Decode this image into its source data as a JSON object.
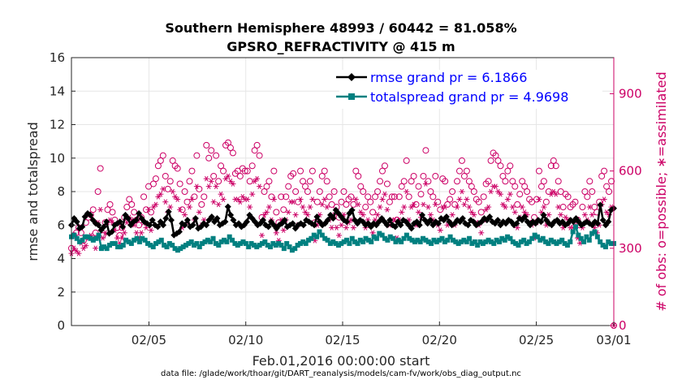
{
  "chart_data": {
    "type": "line",
    "title_line1": "Southern Hemisphere 48993 / 60442 = 81.058%",
    "title_line2": "GPSRO_REFRACTIVITY @ 415 m",
    "ylabel_left": "rmse and totalspread",
    "ylabel_right": "# of obs: o=possible; ∗=assimilated",
    "xlabel": "Feb.01,2016 00:00:00 start",
    "footnote": "data file: /glade/work/thoar/git/DART_reanalysis/models/cam-fv/work/obs_diag_output.nc",
    "ylim_left": [
      0,
      16
    ],
    "ylim_right": [
      0,
      1040
    ],
    "xlim": [
      1,
      29
    ],
    "yticks_left": [
      "0",
      "2",
      "4",
      "6",
      "8",
      "10",
      "12",
      "14",
      "16"
    ],
    "yticks_right": [
      "0",
      "300",
      "600",
      "900"
    ],
    "xticks": [
      {
        "pos": 5,
        "label": "02/05"
      },
      {
        "pos": 10,
        "label": "02/10"
      },
      {
        "pos": 15,
        "label": "02/15"
      },
      {
        "pos": 20,
        "label": "02/20"
      },
      {
        "pos": 25,
        "label": "02/25"
      },
      {
        "pos": 29,
        "label": "03/01"
      }
    ],
    "grid": true,
    "legend_placement": "top-right",
    "colors": {
      "rmse": "#000000",
      "spread": "#008080",
      "obs": "#cc0066",
      "legend_text": "#0000ff"
    },
    "series": [
      {
        "name": "rmse grand pr = 6.1866",
        "axis": "left",
        "values": [
          6.0,
          6.4,
          6.2,
          5.8,
          5.9,
          6.5,
          6.7,
          6.6,
          6.3,
          6.1,
          6.0,
          5.7,
          5.9,
          6.2,
          5.5,
          5.6,
          6.0,
          6.1,
          6.2,
          5.9,
          6.6,
          6.4,
          6.0,
          6.2,
          6.3,
          6.7,
          6.4,
          6.2,
          6.1,
          6.0,
          6.3,
          6.0,
          5.9,
          6.2,
          6.0,
          6.4,
          6.8,
          6.3,
          5.4,
          5.5,
          5.6,
          6.1,
          6.0,
          6.3,
          5.9,
          6.0,
          6.4,
          5.8,
          5.9,
          6.1,
          6.0,
          6.3,
          6.5,
          6.2,
          6.4,
          6.0,
          6.1,
          6.2,
          7.1,
          6.6,
          6.3,
          6.0,
          6.1,
          5.9,
          6.0,
          6.2,
          6.6,
          6.4,
          6.2,
          6.0,
          6.1,
          6.3,
          6.0,
          5.9,
          6.2,
          6.0,
          5.8,
          6.0,
          6.1,
          6.3,
          5.9,
          6.0,
          6.1,
          5.8,
          6.0,
          6.1,
          6.0,
          6.3,
          6.2,
          6.1,
          6.0,
          6.5,
          6.2,
          6.0,
          6.1,
          6.3,
          6.6,
          6.4,
          6.9,
          6.7,
          6.5,
          6.3,
          6.2,
          6.7,
          6.9,
          6.3,
          6.1,
          6.3,
          6.2,
          6.0,
          6.1,
          5.9,
          6.1,
          6.0,
          6.2,
          6.4,
          6.2,
          6.0,
          6.3,
          6.0,
          5.9,
          6.2,
          6.0,
          6.3,
          6.2,
          6.0,
          5.8,
          6.1,
          6.2,
          6.0,
          6.6,
          6.3,
          6.1,
          6.3,
          6.0,
          6.2,
          6.1,
          6.4,
          6.3,
          6.5,
          6.2,
          6.0,
          6.1,
          6.3,
          6.2,
          6.4,
          6.1,
          6.0,
          6.3,
          6.2,
          6.0,
          6.1,
          6.2,
          6.4,
          6.3,
          6.5,
          6.2,
          6.1,
          6.3,
          6.0,
          6.2,
          6.1,
          6.3,
          6.2,
          6.0,
          6.1,
          6.4,
          6.3,
          6.5,
          6.2,
          6.0,
          6.2,
          6.1,
          6.3,
          6.2,
          6.6,
          6.3,
          6.1,
          6.0,
          6.2,
          6.3,
          6.1,
          6.2,
          6.0,
          6.1,
          6.3,
          6.2,
          6.4,
          6.2,
          6.0,
          6.1,
          6.2,
          6.1,
          6.0,
          6.2,
          6.1,
          7.2,
          6.3,
          6.0,
          6.2,
          6.9,
          7.0
        ]
      },
      {
        "name": "totalspread grand pr = 4.9698",
        "axis": "left",
        "values": [
          5.3,
          5.4,
          5.2,
          5.0,
          5.1,
          5.3,
          5.3,
          5.2,
          5.1,
          5.2,
          5.4,
          4.6,
          4.7,
          4.6,
          4.8,
          4.9,
          4.9,
          4.7,
          4.7,
          4.8,
          5.1,
          5.0,
          4.9,
          5.1,
          5.2,
          5.0,
          5.2,
          5.1,
          4.9,
          4.8,
          4.7,
          4.9,
          5.0,
          5.1,
          4.8,
          4.7,
          4.9,
          4.8,
          4.6,
          4.5,
          4.6,
          4.7,
          4.8,
          4.9,
          5.0,
          4.8,
          4.9,
          4.7,
          4.9,
          5.0,
          5.1,
          5.0,
          5.2,
          4.9,
          4.8,
          5.0,
          5.1,
          5.0,
          5.3,
          5.1,
          4.9,
          4.8,
          4.9,
          5.0,
          4.9,
          4.7,
          4.9,
          4.8,
          4.7,
          4.8,
          4.9,
          5.0,
          4.8,
          4.7,
          4.9,
          4.8,
          4.9,
          4.8,
          4.6,
          4.9,
          4.7,
          4.5,
          4.6,
          4.8,
          4.9,
          5.0,
          4.9,
          5.1,
          5.2,
          5.4,
          5.3,
          5.6,
          5.4,
          5.2,
          5.1,
          4.9,
          5.0,
          4.9,
          4.8,
          4.9,
          5.0,
          5.1,
          4.9,
          5.2,
          5.0,
          4.9,
          5.1,
          5.0,
          5.2,
          5.1,
          5.0,
          5.3,
          5.2,
          5.5,
          5.4,
          5.2,
          5.1,
          5.3,
          5.2,
          5.0,
          5.1,
          5.0,
          5.2,
          5.4,
          5.2,
          5.1,
          5.0,
          5.1,
          5.0,
          5.2,
          5.1,
          5.0,
          4.9,
          5.1,
          5.0,
          5.1,
          5.2,
          5.0,
          5.1,
          5.3,
          5.1,
          5.0,
          4.9,
          5.0,
          5.1,
          5.0,
          5.2,
          4.9,
          5.0,
          4.8,
          5.0,
          4.9,
          5.0,
          5.1,
          5.0,
          4.9,
          5.1,
          5.0,
          5.2,
          5.1,
          5.3,
          5.2,
          5.0,
          4.9,
          4.8,
          5.0,
          5.1,
          4.9,
          5.0,
          5.2,
          5.4,
          5.3,
          5.1,
          5.2,
          5.0,
          4.9,
          5.1,
          5.0,
          4.9,
          5.0,
          5.1,
          4.9,
          4.8,
          5.0,
          5.6,
          5.9,
          5.4,
          5.2,
          5.0,
          5.3,
          5.1,
          5.5,
          5.6,
          5.3,
          5.0,
          4.8,
          4.7,
          5.0,
          4.9,
          4.9
        ]
      },
      {
        "name": "# of obs possible",
        "axis": "right",
        "values": [
          300,
          350,
          360,
          380,
          360,
          330,
          400,
          420,
          430,
          450,
          360,
          520,
          610,
          350,
          400,
          450,
          470,
          440,
          410,
          380,
          350,
          380,
          420,
          460,
          490,
          470,
          440,
          410,
          390,
          420,
          500,
          450,
          540,
          440,
          550,
          570,
          620,
          640,
          660,
          580,
          530,
          560,
          640,
          620,
          610,
          550,
          450,
          520,
          480,
          560,
          600,
          500,
          660,
          530,
          470,
          500,
          700,
          650,
          680,
          580,
          660,
          560,
          620,
          600,
          700,
          710,
          690,
          670,
          590,
          600,
          580,
          610,
          600,
          600,
          560,
          620,
          680,
          700,
          660,
          420,
          520,
          540,
          560,
          500,
          600,
          440,
          400,
          500,
          450,
          500,
          540,
          580,
          590,
          520,
          480,
          600,
          560,
          540,
          520,
          560,
          600,
          400,
          480,
          520,
          580,
          600,
          560,
          500,
          470,
          520,
          460,
          420,
          480,
          520,
          470,
          490,
          500,
          470,
          600,
          580,
          540,
          520,
          460,
          500,
          480,
          440,
          500,
          520,
          560,
          600,
          620,
          550,
          480,
          500,
          500,
          410,
          500,
          540,
          560,
          640,
          500,
          560,
          580,
          470,
          540,
          510,
          580,
          680,
          560,
          520,
          500,
          580,
          480,
          450,
          570,
          560,
          470,
          490,
          520,
          470,
          560,
          600,
          640,
          580,
          600,
          560,
          540,
          520,
          490,
          480,
          440,
          500,
          550,
          560,
          640,
          670,
          660,
          640,
          620,
          580,
          560,
          600,
          620,
          560,
          540,
          470,
          510,
          560,
          540,
          520,
          490,
          480,
          420,
          490,
          600,
          540,
          560,
          480,
          520,
          620,
          640,
          620,
          560,
          520,
          460,
          510,
          500,
          460,
          470,
          480,
          410,
          390,
          460,
          520,
          500,
          560,
          520,
          460,
          440,
          480,
          580,
          600,
          540,
          520,
          560,
          0
        ]
      },
      {
        "name": "# of obs assimilated",
        "axis": "right",
        "values": [
          280,
          300,
          290,
          280,
          320,
          300,
          310,
          340,
          350,
          340,
          300,
          400,
          450,
          340,
          360,
          400,
          410,
          400,
          370,
          340,
          320,
          340,
          360,
          400,
          420,
          410,
          390,
          360,
          340,
          360,
          400,
          380,
          450,
          370,
          460,
          470,
          500,
          510,
          530,
          480,
          440,
          460,
          520,
          500,
          490,
          450,
          380,
          430,
          400,
          460,
          490,
          410,
          540,
          440,
          390,
          410,
          570,
          540,
          560,
          480,
          540,
          470,
          510,
          490,
          570,
          580,
          560,
          550,
          490,
          490,
          480,
          500,
          490,
          490,
          460,
          510,
          560,
          570,
          540,
          350,
          430,
          440,
          460,
          410,
          490,
          360,
          330,
          410,
          370,
          410,
          440,
          480,
          480,
          430,
          390,
          490,
          460,
          440,
          430,
          460,
          490,
          330,
          390,
          430,
          470,
          490,
          460,
          410,
          380,
          430,
          380,
          350,
          390,
          430,
          380,
          400,
          410,
          380,
          490,
          470,
          440,
          430,
          380,
          410,
          390,
          360,
          410,
          430,
          460,
          490,
          510,
          450,
          390,
          410,
          410,
          340,
          410,
          440,
          460,
          520,
          410,
          460,
          470,
          390,
          440,
          420,
          470,
          550,
          460,
          430,
          410,
          470,
          390,
          370,
          460,
          460,
          390,
          400,
          430,
          390,
          460,
          490,
          520,
          470,
          490,
          460,
          440,
          430,
          400,
          390,
          360,
          410,
          450,
          460,
          520,
          540,
          540,
          520,
          510,
          470,
          460,
          490,
          510,
          460,
          440,
          380,
          420,
          460,
          440,
          430,
          400,
          390,
          340,
          400,
          490,
          440,
          460,
          390,
          430,
          510,
          520,
          510,
          460,
          430,
          380,
          420,
          410,
          380,
          380,
          390,
          340,
          320,
          380,
          430,
          410,
          460,
          430,
          380,
          360,
          390,
          470,
          490,
          440,
          430,
          460,
          0
        ]
      }
    ]
  }
}
